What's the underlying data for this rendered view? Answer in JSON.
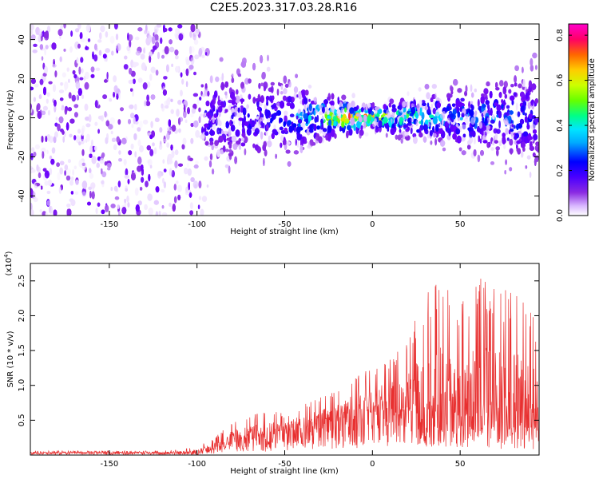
{
  "title": "C2E5.2023.317.03.28.R16",
  "colors": {
    "snr_line": "#e83030",
    "spec_background": "#ffffff",
    "colormap": [
      "#ffffff",
      "#d9b8ff",
      "#8a2be2",
      "#6a00ff",
      "#3300ff",
      "#0000ff",
      "#00aaff",
      "#00e5ff",
      "#00ff88",
      "#66ff00",
      "#ccff00",
      "#ffcc00",
      "#ff6600",
      "#ff0066",
      "#ff00cc"
    ]
  },
  "chart_data": [
    {
      "type": "heatmap",
      "name": "spectrogram",
      "title": "C2E5.2023.317.03.28.R16",
      "xlabel": "Height of straight line (km)",
      "ylabel": "Frequency (Hz)",
      "xlim": [
        -195,
        95
      ],
      "ylim": [
        -50,
        48
      ],
      "xticks": [
        -150,
        -100,
        -50,
        0,
        50
      ],
      "yticks": [
        -40,
        -20,
        0,
        20,
        40
      ],
      "description_of_values": {
        "noise_region_x": [
          -195,
          -100
        ],
        "signal_band_halfwidth_hz_at_x": {
          "x": [
            -100,
            -75,
            -50,
            -30,
            0,
            20,
            50,
            80,
            95
          ],
          "halfwidth": [
            25,
            22,
            20,
            12,
            6,
            10,
            15,
            20,
            25
          ]
        },
        "peak_amplitude_at_x": {
          "x": [
            -100,
            -50,
            -30,
            -15,
            0,
            15,
            40,
            80,
            95
          ],
          "amp": [
            0.15,
            0.2,
            0.35,
            0.65,
            0.55,
            0.45,
            0.3,
            0.25,
            0.15
          ]
        }
      },
      "colorbar": {
        "label": "Normalized spectral amplitude",
        "min": 0.0,
        "max": 0.85,
        "ticks": [
          "0.0",
          "0.2",
          "0.4",
          "0.6",
          "0.8"
        ]
      }
    },
    {
      "type": "line",
      "name": "snr",
      "xlabel": "Height of straight line (km)",
      "ylabel": "SNR (10 * v/v)",
      "y_multiplier": "(x10",
      "y_multiplier_exp": "4",
      "y_multiplier_close": ")",
      "xlim": [
        -195,
        95
      ],
      "ylim": [
        0,
        2.75
      ],
      "xticks": [
        -150,
        -100,
        -50,
        0,
        50
      ],
      "yticks": [
        "0.5",
        "1.0",
        "1.5",
        "2.0",
        "2.5"
      ],
      "envelope": {
        "x": [
          -195,
          -120,
          -100,
          -90,
          -80,
          -60,
          -50,
          -40,
          -20,
          -10,
          0,
          10,
          18,
          25,
          30,
          40,
          50,
          60,
          70,
          80,
          95
        ],
        "y_base": [
          0.03,
          0.03,
          0.03,
          0.08,
          0.2,
          0.25,
          0.3,
          0.35,
          0.45,
          0.5,
          0.6,
          0.6,
          0.65,
          0.55,
          0.45,
          0.4,
          0.45,
          0.4,
          0.45,
          0.4,
          0.4
        ],
        "y_peak": [
          0.06,
          0.06,
          0.12,
          0.25,
          0.5,
          0.65,
          0.6,
          0.75,
          0.95,
          1.25,
          1.3,
          1.4,
          1.6,
          2.0,
          2.4,
          2.5,
          2.3,
          2.6,
          2.4,
          2.4,
          1.9
        ]
      }
    }
  ]
}
